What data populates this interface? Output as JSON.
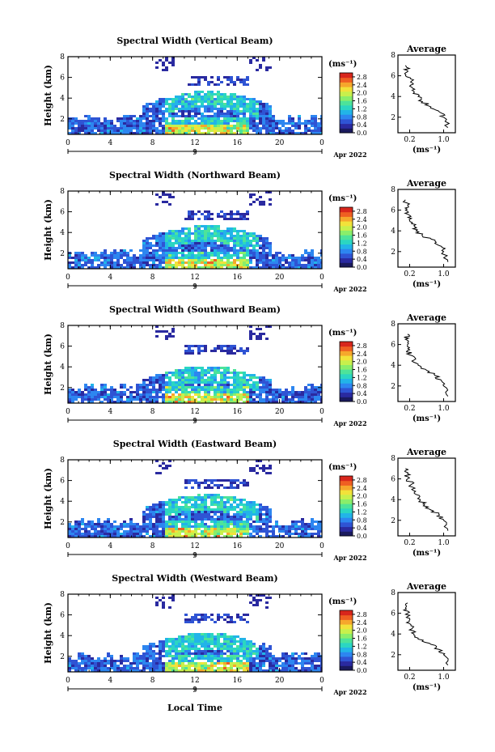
{
  "chart_data": [
    {
      "type": "heatmap",
      "title": "Spectral Width (Vertical Beam)",
      "ylabel": "Height (km)",
      "xlabel": "Local Time",
      "x_ticks": [
        "0",
        "4",
        "8",
        "12",
        "16",
        "20",
        "0"
      ],
      "y_ticks": [
        "2",
        "4",
        "6",
        "8"
      ],
      "xlim": [
        0,
        24
      ],
      "ylim": [
        0.5,
        8
      ],
      "day": "9",
      "date": "Apr 2022",
      "colorbar": {
        "label": "(ms⁻¹)",
        "ticks": [
          "0.0",
          "0.4",
          "0.8",
          "1.2",
          "1.6",
          "2.0",
          "2.4",
          "2.8"
        ],
        "range": [
          0,
          3
        ]
      },
      "profile": {
        "title": "Average",
        "xlabel": "(ms⁻¹)",
        "x_ticks": [
          "0.2",
          "1.0"
        ],
        "y_ticks": [
          "2",
          "4",
          "6",
          "8"
        ],
        "points": [
          [
            1.1,
            1.0
          ],
          [
            1.0,
            2.0
          ],
          [
            0.9,
            2.5
          ],
          [
            0.7,
            3.0
          ],
          [
            0.5,
            3.5
          ],
          [
            0.4,
            4.0
          ],
          [
            0.3,
            4.5
          ],
          [
            0.2,
            5.0
          ],
          [
            0.25,
            5.5
          ],
          [
            0.1,
            6.0
          ],
          [
            0.15,
            6.5
          ],
          [
            0.1,
            7.0
          ]
        ]
      }
    },
    {
      "type": "heatmap",
      "title": "Spectral Width (Northward Beam)",
      "ylabel": "Height (km)",
      "xlabel": "Local Time",
      "x_ticks": [
        "0",
        "4",
        "8",
        "12",
        "16",
        "20",
        "0"
      ],
      "y_ticks": [
        "2",
        "4",
        "6",
        "8"
      ],
      "xlim": [
        0,
        24
      ],
      "ylim": [
        0.5,
        8
      ],
      "day": "9",
      "date": "Apr 2022",
      "colorbar": {
        "label": "(ms⁻¹)",
        "ticks": [
          "0.0",
          "0.4",
          "0.8",
          "1.2",
          "1.6",
          "2.0",
          "2.4",
          "2.8"
        ],
        "range": [
          0,
          3
        ]
      },
      "profile": {
        "title": "Average",
        "xlabel": "(ms⁻¹)",
        "x_ticks": [
          "0.2",
          "1.0"
        ],
        "y_ticks": [
          "2",
          "4",
          "6",
          "8"
        ],
        "points": [
          [
            1.1,
            1.0
          ],
          [
            1.0,
            2.0
          ],
          [
            0.95,
            2.5
          ],
          [
            0.8,
            3.0
          ],
          [
            0.5,
            3.5
          ],
          [
            0.35,
            4.0
          ],
          [
            0.3,
            4.5
          ],
          [
            0.2,
            5.0
          ],
          [
            0.2,
            5.5
          ],
          [
            0.1,
            6.0
          ],
          [
            0.15,
            6.5
          ],
          [
            0.1,
            7.0
          ]
        ]
      }
    },
    {
      "type": "heatmap",
      "title": "Spectral Width (Southward Beam)",
      "ylabel": "Height (km)",
      "xlabel": "Local Time",
      "x_ticks": [
        "0",
        "4",
        "8",
        "12",
        "16",
        "20",
        "0"
      ],
      "y_ticks": [
        "2",
        "4",
        "6",
        "8"
      ],
      "xlim": [
        0,
        24
      ],
      "ylim": [
        0.5,
        8
      ],
      "day": "9",
      "date": "Apr 2022",
      "colorbar": {
        "label": "(ms⁻¹)",
        "ticks": [
          "0.0",
          "0.4",
          "0.8",
          "1.2",
          "1.6",
          "2.0",
          "2.4",
          "2.8"
        ],
        "range": [
          0,
          3
        ]
      },
      "profile": {
        "title": "Average",
        "xlabel": "(ms⁻¹)",
        "x_ticks": [
          "0.2",
          "1.0"
        ],
        "y_ticks": [
          "2",
          "4",
          "6",
          "8"
        ],
        "points": [
          [
            1.1,
            1.0
          ],
          [
            1.0,
            2.0
          ],
          [
            0.95,
            2.5
          ],
          [
            0.8,
            3.0
          ],
          [
            0.6,
            3.5
          ],
          [
            0.4,
            4.0
          ],
          [
            0.3,
            4.5
          ],
          [
            0.2,
            5.0
          ],
          [
            0.2,
            5.5
          ],
          [
            0.15,
            6.0
          ],
          [
            0.1,
            6.5
          ],
          [
            0.15,
            7.0
          ]
        ]
      }
    },
    {
      "type": "heatmap",
      "title": "Spectral Width (Eastward Beam)",
      "ylabel": "Height (km)",
      "xlabel": "Local Time",
      "x_ticks": [
        "0",
        "4",
        "8",
        "12",
        "16",
        "20",
        "0"
      ],
      "y_ticks": [
        "2",
        "4",
        "6",
        "8"
      ],
      "xlim": [
        0,
        24
      ],
      "ylim": [
        0.5,
        8
      ],
      "day": "9",
      "date": "Apr 2022",
      "colorbar": {
        "label": "(ms⁻¹)",
        "ticks": [
          "0.0",
          "0.4",
          "0.8",
          "1.2",
          "1.6",
          "2.0",
          "2.4",
          "2.8"
        ],
        "range": [
          0,
          3
        ]
      },
      "profile": {
        "title": "Average",
        "xlabel": "(ms⁻¹)",
        "x_ticks": [
          "0.2",
          "1.0"
        ],
        "y_ticks": [
          "2",
          "4",
          "6",
          "8"
        ],
        "points": [
          [
            1.1,
            1.0
          ],
          [
            1.0,
            2.0
          ],
          [
            0.9,
            2.5
          ],
          [
            0.7,
            3.0
          ],
          [
            0.55,
            3.5
          ],
          [
            0.45,
            4.0
          ],
          [
            0.35,
            4.5
          ],
          [
            0.25,
            5.0
          ],
          [
            0.25,
            5.5
          ],
          [
            0.15,
            6.0
          ],
          [
            0.15,
            6.5
          ],
          [
            0.1,
            7.0
          ]
        ]
      }
    },
    {
      "type": "heatmap",
      "title": "Spectral Width (Westward Beam)",
      "ylabel": "Height (km)",
      "xlabel": "Local Time",
      "x_ticks": [
        "0",
        "4",
        "8",
        "12",
        "16",
        "20",
        "0"
      ],
      "y_ticks": [
        "2",
        "4",
        "6",
        "8"
      ],
      "xlim": [
        0,
        24
      ],
      "ylim": [
        0.5,
        8
      ],
      "day": "9",
      "date": "Apr 2022",
      "colorbar": {
        "label": "(ms⁻¹)",
        "ticks": [
          "0.0",
          "0.4",
          "0.8",
          "1.2",
          "1.6",
          "2.0",
          "2.4",
          "2.8"
        ],
        "range": [
          0,
          3
        ]
      },
      "profile": {
        "title": "Average",
        "xlabel": "(ms⁻¹)",
        "x_ticks": [
          "0.2",
          "1.0"
        ],
        "y_ticks": [
          "2",
          "4",
          "6",
          "8"
        ],
        "points": [
          [
            1.1,
            1.0
          ],
          [
            1.0,
            2.0
          ],
          [
            0.9,
            2.5
          ],
          [
            0.7,
            3.0
          ],
          [
            0.4,
            3.5
          ],
          [
            0.3,
            4.0
          ],
          [
            0.25,
            4.5
          ],
          [
            0.2,
            5.0
          ],
          [
            0.2,
            5.5
          ],
          [
            0.15,
            6.0
          ],
          [
            0.1,
            6.5
          ],
          [
            0.15,
            7.0
          ]
        ]
      }
    }
  ],
  "footer": {
    "x_axis_label": "Local Time"
  },
  "colors": {
    "colormap": [
      "#1a1a5e",
      "#2a2aa0",
      "#2f54d4",
      "#2d86f0",
      "#22b4e8",
      "#2bd6c2",
      "#4de39a",
      "#8aee6a",
      "#c8f04c",
      "#f2e23a",
      "#f6a72c",
      "#ef5f22",
      "#d8261c"
    ]
  }
}
